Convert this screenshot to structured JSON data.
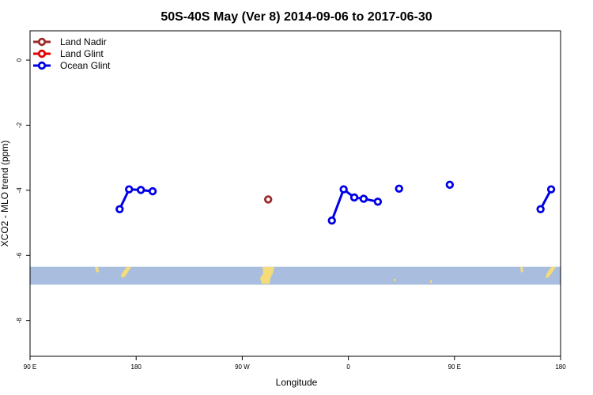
{
  "chart_data": {
    "type": "line",
    "title": "50S-40S May (Ver 8)   2014-09-06 to 2017-06-30",
    "xlabel": "Longitude",
    "ylabel": "XCO2 - MLO trend (ppm)",
    "xlim": [
      90,
      540
    ],
    "ylim": [
      -9.1,
      0.9
    ],
    "x_ticks": [
      {
        "value": 90,
        "label": "90 E"
      },
      {
        "value": 180,
        "label": "180"
      },
      {
        "value": 270,
        "label": "90 W"
      },
      {
        "value": 360,
        "label": "0"
      },
      {
        "value": 450,
        "label": "90 E"
      },
      {
        "value": 540,
        "label": "180"
      }
    ],
    "y_ticks": [
      {
        "value": 0,
        "label": "0"
      },
      {
        "value": -2,
        "label": "-2"
      },
      {
        "value": -4,
        "label": "-4"
      },
      {
        "value": -6,
        "label": "-6"
      },
      {
        "value": -8,
        "label": "-8"
      }
    ],
    "legend_position": "top-left",
    "map_strip": {
      "y_range": [
        -6.9,
        -6.35
      ],
      "sea_color": "#a9bede",
      "land_color": "#f5dc78"
    },
    "series": [
      {
        "name": "Land Nadir",
        "color": "#9b2a2a",
        "segments": [
          [
            [
              292,
              -4.28
            ]
          ]
        ]
      },
      {
        "name": "Land Glint",
        "color": "#e00000",
        "segments": []
      },
      {
        "name": "Ocean Glint",
        "color": "#0000e6",
        "segments": [
          [
            [
              166,
              -4.58
            ],
            [
              174,
              -3.97
            ],
            [
              184,
              -3.99
            ],
            [
              194,
              -4.03
            ]
          ],
          [
            [
              346,
              -4.93
            ],
            [
              356,
              -3.97
            ],
            [
              365,
              -4.22
            ],
            [
              373,
              -4.26
            ],
            [
              385,
              -4.35
            ]
          ],
          [
            [
              403,
              -3.95
            ]
          ],
          [
            [
              446,
              -3.83
            ]
          ],
          [
            [
              523,
              -4.58
            ],
            [
              532,
              -3.97
            ]
          ]
        ]
      }
    ]
  }
}
